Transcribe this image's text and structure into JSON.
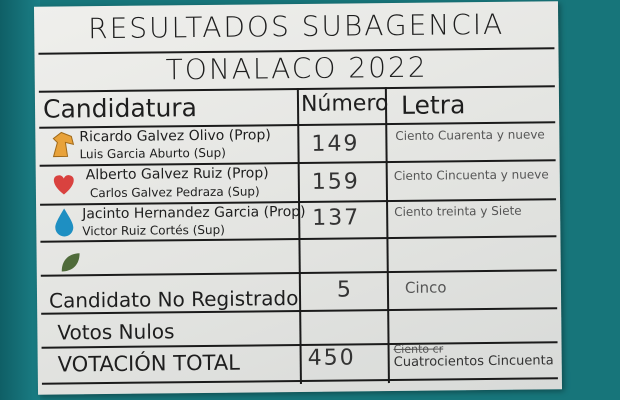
{
  "poster": {
    "title_line1": "RESULTADOS SUBAGENCIA",
    "title_line2": "TONALACO 2022",
    "headers": {
      "candidatura": "Candidatura",
      "numero": "Número",
      "letra": "Letra"
    },
    "candidates": [
      {
        "icon": "horse-icon",
        "color": "#e8a23a",
        "prop": "Ricardo Galvez Olivo (Prop)",
        "sup": "Luis Garcia Aburto (Sup)",
        "numero": "149",
        "letra": "Ciento Cuarenta y nueve"
      },
      {
        "icon": "heart-icon",
        "color": "#d9423f",
        "prop": "Alberto Galvez Ruiz (Prop)",
        "sup": "Carlos Galvez Pedraza (Sup)",
        "numero": "159",
        "letra": "Ciento Cincuenta y nueve"
      },
      {
        "icon": "water-drop-icon",
        "color": "#1e8fc2",
        "prop": "Jacinto Hernandez Garcia (Prop)",
        "sup": "Victor Ruiz Cortés (Sup)",
        "numero": "137",
        "letra": "Ciento treinta y Siete"
      },
      {
        "icon": "leaf-icon",
        "color": "#4f6b3a"
      }
    ],
    "no_registrado": {
      "label": "Candidato No Registrado",
      "numero": "5",
      "letra": "Cinco"
    },
    "nulos": {
      "label": "Votos Nulos"
    },
    "total": {
      "label": "VOTACIÓN TOTAL",
      "numero": "450",
      "letra_struck": "Ciento cr",
      "letra": "Cuatrocientos Cincuenta"
    }
  }
}
